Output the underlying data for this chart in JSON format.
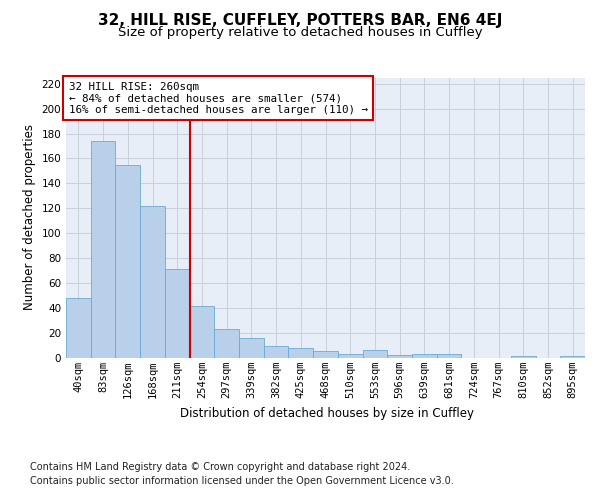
{
  "title": "32, HILL RISE, CUFFLEY, POTTERS BAR, EN6 4EJ",
  "subtitle": "Size of property relative to detached houses in Cuffley",
  "xlabel": "Distribution of detached houses by size in Cuffley",
  "ylabel": "Number of detached properties",
  "categories": [
    "40sqm",
    "83sqm",
    "126sqm",
    "168sqm",
    "211sqm",
    "254sqm",
    "297sqm",
    "339sqm",
    "382sqm",
    "425sqm",
    "468sqm",
    "510sqm",
    "553sqm",
    "596sqm",
    "639sqm",
    "681sqm",
    "724sqm",
    "767sqm",
    "810sqm",
    "852sqm",
    "895sqm"
  ],
  "values": [
    48,
    174,
    155,
    122,
    71,
    41,
    23,
    16,
    9,
    8,
    5,
    3,
    6,
    2,
    3,
    3,
    0,
    0,
    1,
    0,
    1
  ],
  "bar_color": "#b8d0ea",
  "bar_edge_color": "#6aaad4",
  "grid_color": "#c8d0dc",
  "vline_x": 4.5,
  "vline_color": "#cc0000",
  "annotation_line1": "32 HILL RISE: 260sqm",
  "annotation_line2": "← 84% of detached houses are smaller (574)",
  "annotation_line3": "16% of semi-detached houses are larger (110) →",
  "annotation_box_color": "#ffffff",
  "annotation_box_edge": "#cc0000",
  "ylim": [
    0,
    225
  ],
  "yticks": [
    0,
    20,
    40,
    60,
    80,
    100,
    120,
    140,
    160,
    180,
    200,
    220
  ],
  "footnote1": "Contains HM Land Registry data © Crown copyright and database right 2024.",
  "footnote2": "Contains public sector information licensed under the Open Government Licence v3.0.",
  "background_color": "#e8eef8",
  "figure_background": "#ffffff",
  "title_fontsize": 11,
  "subtitle_fontsize": 9.5,
  "axis_label_fontsize": 8.5,
  "tick_fontsize": 7.5,
  "annot_fontsize": 7.8,
  "footnote_fontsize": 7.0
}
